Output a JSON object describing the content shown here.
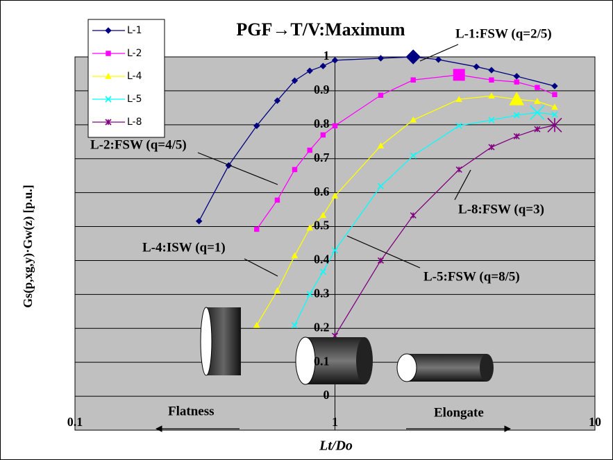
{
  "chart_data": {
    "type": "line",
    "title": "PGF→T/V:Maximum",
    "y_label": "Gs(p,xg,y)·Gw(z)  [p.u.]",
    "x_label": "Lt/Do",
    "xscale": "log",
    "xlim": [
      0.1,
      10
    ],
    "xticks": [
      0.1,
      1,
      10
    ],
    "ylim": [
      -0.1,
      1.0
    ],
    "yticks": [
      0,
      0.1,
      0.2,
      0.3,
      0.4,
      0.5,
      0.6,
      0.7,
      0.8,
      0.9,
      1
    ],
    "grid": true,
    "legend": "top-left",
    "series": [
      {
        "name": "L-1",
        "color": "#000080",
        "marker": "diamond",
        "highlight": 9,
        "x": [
          0.3,
          0.39,
          0.5,
          0.6,
          0.7,
          0.8,
          0.9,
          1,
          1.5,
          2,
          2.5,
          3.5,
          4,
          5,
          7
        ],
        "values": [
          0.516,
          0.68,
          0.797,
          0.871,
          0.93,
          0.959,
          0.973,
          0.99,
          0.996,
          1.0,
          0.992,
          0.971,
          0.961,
          0.943,
          0.914
        ]
      },
      {
        "name": "L-2",
        "color": "#ff00ff",
        "marker": "square",
        "highlight": 8,
        "x": [
          0.5,
          0.6,
          0.7,
          0.8,
          0.9,
          1,
          1.5,
          2,
          3,
          4,
          5,
          6,
          7
        ],
        "values": [
          0.492,
          0.578,
          0.668,
          0.725,
          0.77,
          0.797,
          0.887,
          0.932,
          0.947,
          0.932,
          0.926,
          0.91,
          0.889
        ]
      },
      {
        "name": "L-4",
        "color": "#ffff00",
        "marker": "triangle",
        "highlight": 10,
        "x": [
          0.5,
          0.6,
          0.7,
          0.8,
          0.9,
          1,
          1.5,
          2,
          3,
          4,
          5,
          6,
          7
        ],
        "values": [
          0.209,
          0.311,
          0.414,
          0.496,
          0.533,
          0.59,
          0.738,
          0.814,
          0.875,
          0.885,
          0.875,
          0.869,
          0.852
        ]
      },
      {
        "name": "L-5",
        "color": "#00ffff",
        "marker": "x",
        "highlight": 9,
        "x": [
          0.7,
          0.8,
          0.9,
          1,
          1.5,
          2,
          3,
          4,
          5,
          6,
          7
        ],
        "values": [
          0.209,
          0.301,
          0.367,
          0.43,
          0.619,
          0.709,
          0.797,
          0.814,
          0.828,
          0.836,
          0.83
        ]
      },
      {
        "name": "L-8",
        "color": "#800080",
        "marker": "star",
        "highlight": 7,
        "x": [
          1,
          1.5,
          2,
          3,
          4,
          5,
          6,
          7
        ],
        "values": [
          0.178,
          0.4,
          0.533,
          0.668,
          0.734,
          0.766,
          0.787,
          0.799
        ]
      }
    ],
    "annotations": [
      "L-1:FSW (q=2/5)",
      "L-2:FSW (q=4/5)",
      "L-4:ISW (q=1)",
      "L-5:FSW (q=8/5)",
      "L-8:FSW (q=3)",
      "Flatness",
      "Elongate"
    ]
  }
}
